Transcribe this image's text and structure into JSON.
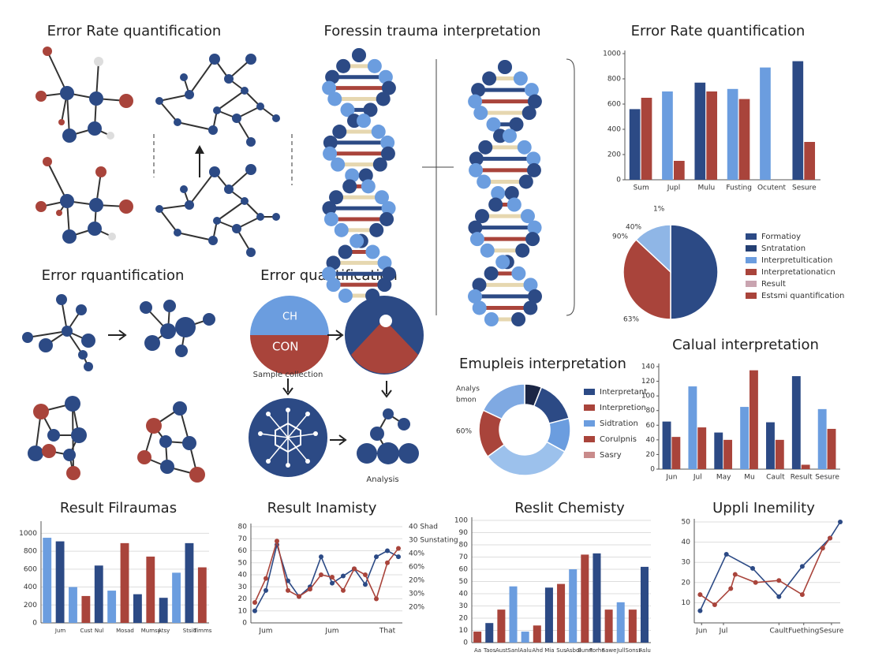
{
  "headings": [
    "Error Rate quantification",
    "Foressin trauma interpretation",
    "Error rquantification",
    "Error quantification"
  ],
  "diagram_labels": [
    "Sample collection",
    "Analysis",
    "CH",
    "CON"
  ],
  "chart_data": [
    {
      "type": "bar",
      "title": "Error Rate quantification",
      "categories": [
        "Sum",
        "Jupl",
        "Mulu",
        "Fusting",
        "Ocutent",
        "Sesure"
      ],
      "series": [
        {
          "values": [
            560,
            700,
            770,
            720,
            890,
            940
          ],
          "colors": [
            "#2c4a85",
            "#6b9ddf",
            "#2c4a85",
            "#6b9ddf",
            "#6b9ddf",
            "#2c4a85"
          ]
        },
        {
          "values": [
            650,
            150,
            700,
            640,
            null,
            300
          ],
          "color": "#a9443b"
        }
      ],
      "ylim": [
        0,
        1000
      ],
      "yticks": [
        0,
        200,
        400,
        600,
        800,
        1000
      ],
      "grid": false
    },
    {
      "type": "pie",
      "values": [
        50,
        37,
        13
      ],
      "colors": [
        "#2c4a85",
        "#a9443b",
        "#8fb6e6"
      ],
      "legend_items": [
        {
          "name": "Formatioy",
          "color": "#2c4a85"
        },
        {
          "name": "Sntratation",
          "color": "#243f73"
        },
        {
          "name": "Interpretultication",
          "color": "#6b9ddf"
        },
        {
          "name": "Interpretationaticn",
          "color": "#a9443b"
        },
        {
          "name": "Result",
          "color": "#c9a4b0"
        },
        {
          "name": "Estsmi quantification",
          "color": "#a9443b"
        }
      ],
      "annotations": [
        "1%",
        "40%",
        "90%",
        "63%"
      ]
    },
    {
      "type": "donut",
      "title": "Emupleis interpretation",
      "values": [
        6,
        15,
        12,
        32,
        17,
        18
      ],
      "colors": [
        "#1b2645",
        "#2c4a85",
        "#6b9ddf",
        "#9cc1ec",
        "#a9443b",
        "#7fa9e2"
      ],
      "legend_items": [
        {
          "name": "Interpretant",
          "color": "#2c4a85"
        },
        {
          "name": "Interpretion",
          "color": "#a9443b"
        },
        {
          "name": "Sidtration",
          "color": "#6b9ddf"
        },
        {
          "name": "Corulpnis",
          "color": "#a9443b"
        },
        {
          "name": "Sasry",
          "color": "#c98b8b"
        }
      ],
      "annotations": [
        "Analys",
        "bmon",
        "60%"
      ]
    },
    {
      "type": "bar",
      "title": "Calual interpretation",
      "categories": [
        "Jun",
        "Jul",
        "May",
        "Mu",
        "Cault",
        "Result",
        "Sesure"
      ],
      "series": [
        {
          "values": [
            65,
            113,
            50,
            85,
            64,
            127,
            82
          ],
          "colors": [
            "#2c4a85",
            "#6b9ddf",
            "#2c4a85",
            "#6b9ddf",
            "#2c4a85",
            "#2c4a85",
            "#6b9ddf"
          ]
        },
        {
          "values": [
            44,
            57,
            40,
            135,
            40,
            6,
            55
          ],
          "color": "#a9443b"
        }
      ],
      "ylim": [
        0,
        140
      ],
      "yticks": [
        0,
        20,
        40,
        60,
        80,
        100,
        120,
        140
      ],
      "grid": false
    },
    {
      "type": "bar",
      "title": "Result Filraumas",
      "categories": [
        null,
        "Jum",
        null,
        "Cust",
        "Nul",
        null,
        "Mosad",
        null,
        "Mumsy",
        "Atsy",
        null,
        "Stsid",
        "Timms"
      ],
      "series": [
        {
          "values": [
            950,
            910,
            400,
            300,
            640,
            360,
            890,
            320,
            740,
            280,
            560,
            890,
            620
          ],
          "colors": [
            "#6b9ddf",
            "#2c4a85",
            "#6b9ddf",
            "#a9443b",
            "#2c4a85",
            "#6b9ddf",
            "#a9443b",
            "#2c4a85",
            "#a9443b",
            "#2c4a85",
            "#6b9ddf",
            "#2c4a85",
            "#a9443b"
          ]
        }
      ],
      "ylim": [
        0,
        1100
      ],
      "yticks": [
        0,
        200,
        400,
        600,
        800,
        1000
      ],
      "grid": true
    },
    {
      "type": "line",
      "title": "Result Inamisty",
      "categories": [
        null,
        "Jum",
        null,
        null,
        null,
        null,
        null,
        "Jum",
        null,
        null,
        null,
        null,
        "That",
        null
      ],
      "series": [
        {
          "values": [
            10,
            27,
            65,
            35,
            22,
            30,
            55,
            33,
            39,
            45,
            32,
            55,
            60,
            55
          ],
          "color": "#2c4a85"
        },
        {
          "values": [
            17,
            37,
            68,
            27,
            22,
            28,
            40,
            38,
            27,
            45,
            40,
            20,
            50,
            62
          ],
          "color": "#a9443b"
        }
      ],
      "ylim": [
        0,
        80
      ],
      "yticks": [
        0,
        10,
        20,
        30,
        40,
        50,
        60,
        70,
        80
      ],
      "grid": true,
      "annotations": [
        "40 Shad",
        "30 Sunstating",
        "40%",
        "60%",
        "20%",
        "30%",
        "20%"
      ]
    },
    {
      "type": "bar",
      "title": "Reslit Chemisty",
      "categories": [
        "Aa",
        "Taos",
        "Aust",
        "Sanl",
        "Aalu",
        "Ahd",
        "Mia",
        "Sus",
        "Asbol",
        "Bunrt",
        "Forhe",
        "Sawe",
        "Jull",
        "Sonst",
        "Aslu"
      ],
      "series": [
        {
          "values": [
            9,
            16,
            27,
            46,
            9,
            14,
            45,
            48,
            60,
            72,
            73,
            27,
            33,
            27,
            62
          ],
          "colors": [
            "#a9443b",
            "#2c4a85",
            "#a9443b",
            "#6b9ddf",
            "#6b9ddf",
            "#a9443b",
            "#2c4a85",
            "#a9443b",
            "#6b9ddf",
            "#a9443b",
            "#2c4a85",
            "#a9443b",
            "#6b9ddf",
            "#a9443b",
            "#2c4a85"
          ]
        }
      ],
      "ylim": [
        0,
        100
      ],
      "yticks": [
        0,
        10,
        20,
        30,
        40,
        50,
        60,
        70,
        80,
        90,
        100
      ],
      "grid": true
    },
    {
      "type": "line",
      "title": "Uppli Inemility",
      "series": [
        {
          "x": [
            0.4,
            2.2,
            4,
            5.8,
            7.4,
            9.3,
            10
          ],
          "values": [
            6,
            34,
            27,
            13,
            28,
            42,
            50
          ],
          "color": "#2c4a85"
        },
        {
          "x": [
            0.4,
            1.4,
            2.5,
            2.8,
            4.2,
            5.8,
            7.4,
            8.8,
            9.3
          ],
          "values": [
            14,
            9,
            17,
            24,
            20,
            21,
            14,
            37,
            42
          ],
          "color": "#a9443b"
        }
      ],
      "xlim": [
        0,
        10
      ],
      "xticks": [
        {
          "value": 0.5,
          "label": "Jun"
        },
        {
          "value": 2,
          "label": "Jul"
        },
        {
          "value": 5.8,
          "label": "Cault"
        },
        {
          "value": 7.5,
          "label": "Fuething"
        },
        {
          "value": 9.4,
          "label": "Sesure"
        }
      ],
      "ylim": [
        0,
        50
      ],
      "yticks": [
        10,
        20,
        30,
        40,
        50
      ],
      "grid": true
    }
  ]
}
